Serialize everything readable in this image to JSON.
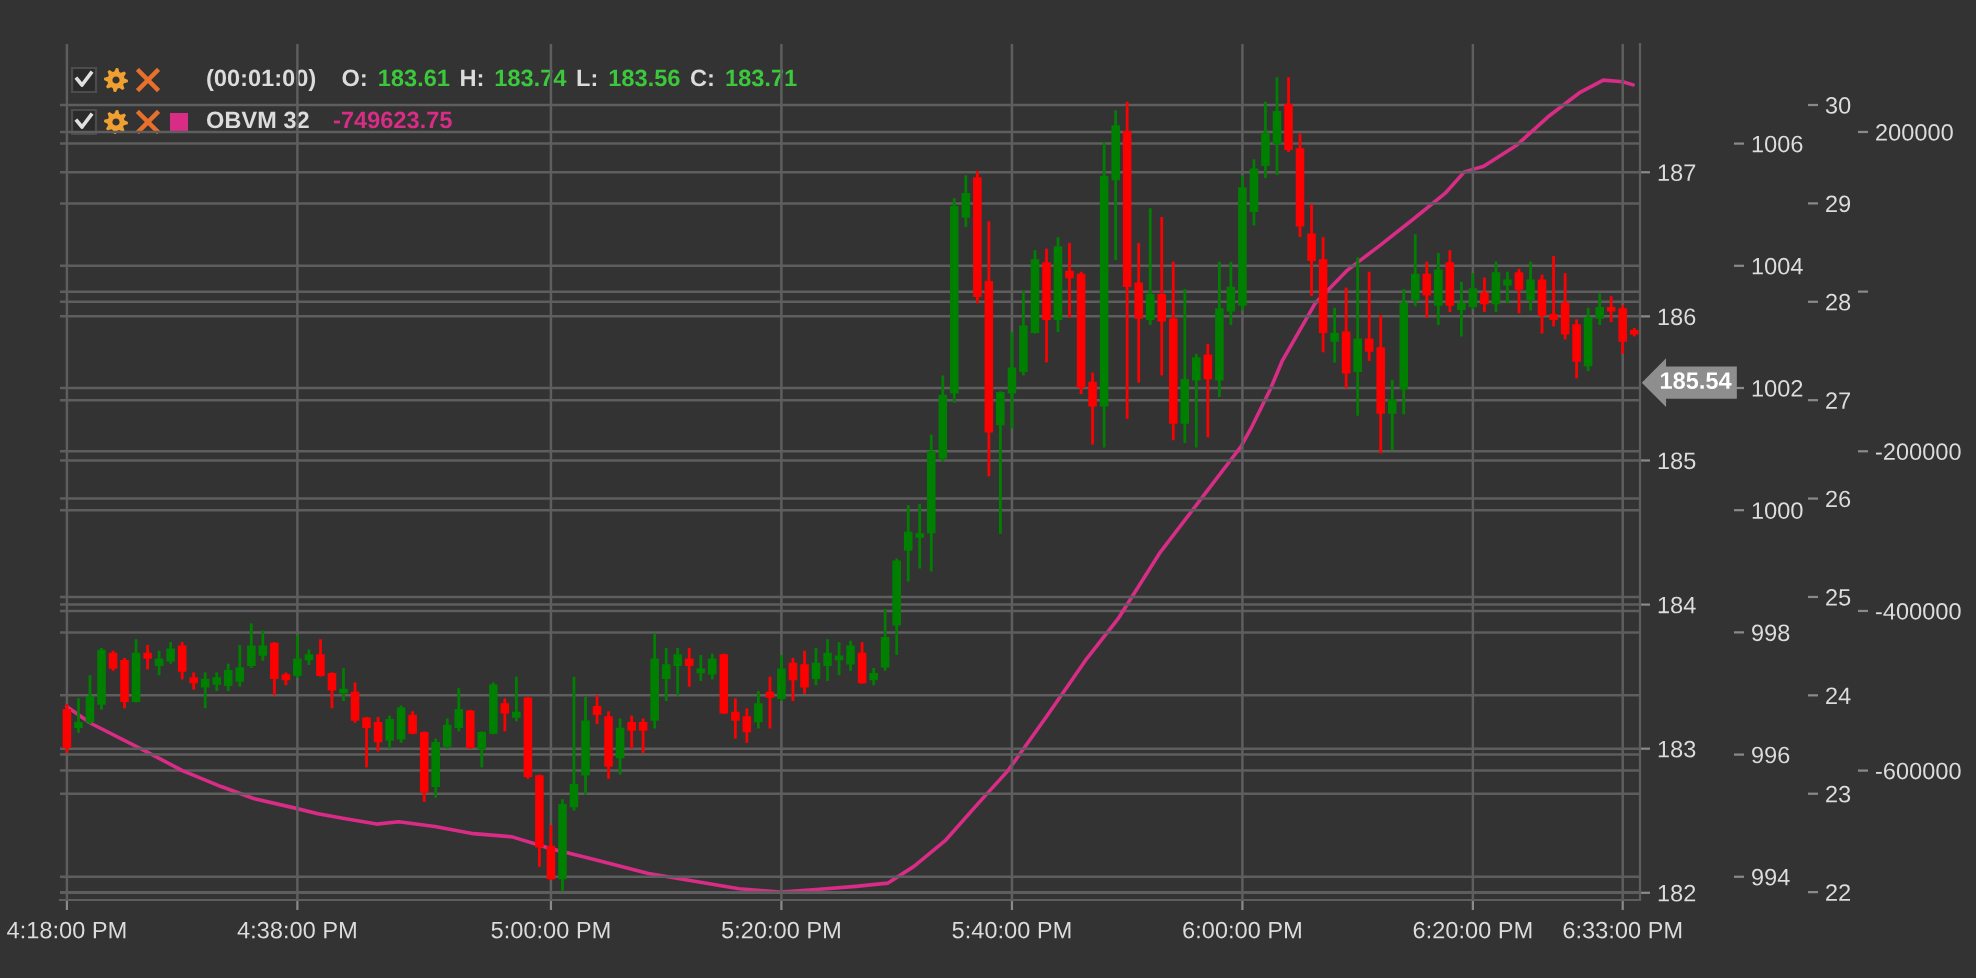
{
  "chart_data": [
    {
      "type": "candlestick",
      "x": [
        16.3,
        16.3167,
        16.3333,
        16.35,
        16.3667,
        16.3833,
        16.4,
        16.4167,
        16.4333,
        16.45,
        16.4667,
        16.4833,
        16.5,
        16.5167,
        16.5333,
        16.55,
        16.5667,
        16.5833,
        16.6,
        16.6167,
        16.6333,
        16.65,
        16.6667,
        16.6833,
        16.7,
        16.7167,
        16.7333,
        16.75,
        16.7667,
        16.7833,
        16.8,
        16.8167,
        16.8333,
        16.85,
        16.8667,
        16.8833,
        16.9,
        16.9167,
        16.9333,
        16.95,
        16.9667,
        16.9833,
        17,
        17.0167,
        17.0333,
        17.05,
        17.0667,
        17.0833,
        17.1,
        17.1167,
        17.1333,
        17.15,
        17.1667,
        17.1833,
        17.2,
        17.2167,
        17.2333,
        17.25,
        17.2667,
        17.2833,
        17.3,
        17.3167,
        17.3333,
        17.35,
        17.3667,
        17.3833,
        17.4,
        17.4167,
        17.4333,
        17.45,
        17.4667,
        17.4833,
        17.5,
        17.5167,
        17.5333,
        17.55,
        17.5667,
        17.5833,
        17.6,
        17.6167,
        17.6333,
        17.65,
        17.6667,
        17.6833,
        17.7,
        17.7167,
        17.7333,
        17.75,
        17.7667,
        17.7833,
        17.8,
        17.8167,
        17.8333,
        17.85,
        17.8667,
        17.8833,
        17.9,
        17.9167,
        17.9333,
        17.95,
        17.9667,
        17.9833,
        18,
        18.0167,
        18.0333,
        18.05,
        18.0667,
        18.0833,
        18.1,
        18.1167,
        18.1333,
        18.15,
        18.1667,
        18.1833,
        18.2,
        18.2167,
        18.2333,
        18.25,
        18.2667,
        18.2833,
        18.3,
        18.3167,
        18.3333,
        18.35,
        18.3667,
        18.3833,
        18.4,
        18.4167,
        18.4333,
        18.45,
        18.4667,
        18.4833,
        18.5,
        18.5167,
        18.5333,
        18.55,
        18.5667
      ],
      "xlim": [
        16.29,
        18.575
      ],
      "xticks": [
        {
          "value": 16.3,
          "label": "4:18:00 PM"
        },
        {
          "value": 16.6333,
          "label": "4:38:00 PM"
        },
        {
          "value": 17,
          "label": "5:00:00 PM"
        },
        {
          "value": 17.3333,
          "label": "5:20:00 PM"
        },
        {
          "value": 17.6667,
          "label": "5:40:00 PM"
        },
        {
          "value": 18,
          "label": "6:00:00 PM"
        },
        {
          "value": 18.3333,
          "label": "6:20:00 PM"
        },
        {
          "value": 18.55,
          "label": "6:33:00 PM"
        }
      ],
      "ylim": [
        181.95,
        187.89
      ],
      "yticks": [
        182,
        183,
        184,
        185,
        186,
        187
      ],
      "y2lim": [
        993.62,
        1007.63
      ],
      "y2ticks": [
        994,
        996,
        998,
        1000,
        1002,
        1004,
        1006
      ],
      "y3lim": [
        21.92,
        30.62
      ],
      "y3ticks": [
        22,
        23,
        24,
        25,
        26,
        27,
        28,
        29,
        30
      ],
      "grid": true,
      "legend": "top left",
      "series": [
        {
          "name": "(00:01:00)",
          "ohlc": [
            [
              183.27,
              183.3,
              182.98,
              183.01
            ],
            [
              183.15,
              183.34,
              183.12,
              183.18
            ],
            [
              183.19,
              183.5,
              183.18,
              183.36
            ],
            [
              183.31,
              183.69,
              183.28,
              183.68
            ],
            [
              183.66,
              183.67,
              183.55,
              183.56
            ],
            [
              183.61,
              183.62,
              183.29,
              183.33
            ],
            [
              183.33,
              183.75,
              183.33,
              183.66
            ],
            [
              183.66,
              183.71,
              183.56,
              183.63
            ],
            [
              183.58,
              183.67,
              183.52,
              183.62
            ],
            [
              183.61,
              183.73,
              183.6,
              183.69
            ],
            [
              183.71,
              183.73,
              183.49,
              183.54
            ],
            [
              183.49,
              183.52,
              183.42,
              183.46
            ],
            [
              183.43,
              183.52,
              183.29,
              183.48
            ],
            [
              183.45,
              183.52,
              183.41,
              183.49
            ],
            [
              183.44,
              183.58,
              183.41,
              183.54
            ],
            [
              183.47,
              183.71,
              183.44,
              183.56
            ],
            [
              183.58,
              183.86,
              183.57,
              183.71
            ],
            [
              183.65,
              183.81,
              183.62,
              183.71
            ],
            [
              183.73,
              183.73,
              183.38,
              183.49
            ],
            [
              183.51,
              183.52,
              183.45,
              183.48
            ],
            [
              183.51,
              183.78,
              183.5,
              183.62
            ],
            [
              183.62,
              183.68,
              183.59,
              183.65
            ],
            [
              183.65,
              183.75,
              183.51,
              183.51
            ],
            [
              183.52,
              183.52,
              183.29,
              183.41
            ],
            [
              183.39,
              183.55,
              183.34,
              183.41
            ],
            [
              183.39,
              183.45,
              183.19,
              183.2
            ],
            [
              183.21,
              183.21,
              182.88,
              183.15
            ],
            [
              183.18,
              183.21,
              182.99,
              183.05
            ],
            [
              183.06,
              183.22,
              183.01,
              183.2
            ],
            [
              183.07,
              183.29,
              183.05,
              183.28
            ],
            [
              183.23,
              183.25,
              183.11,
              183.11
            ],
            [
              183.11,
              183.11,
              182.64,
              182.7
            ],
            [
              182.74,
              183.06,
              182.67,
              183.04
            ],
            [
              183.02,
              183.2,
              183.01,
              183.16
            ],
            [
              183.15,
              183.41,
              183.13,
              183.27
            ],
            [
              183.26,
              183.26,
              183.01,
              183.01
            ],
            [
              183.0,
              183.11,
              182.88,
              183.11
            ],
            [
              183.11,
              183.45,
              183.11,
              183.44
            ],
            [
              183.31,
              183.34,
              183.13,
              183.25
            ],
            [
              183.22,
              183.49,
              183.2,
              183.25
            ],
            [
              183.35,
              183.35,
              182.8,
              182.81
            ],
            [
              182.81,
              182.81,
              182.19,
              182.32
            ],
            [
              182.32,
              182.46,
              182.1,
              182.1
            ],
            [
              182.1,
              182.64,
              182.02,
              182.61
            ],
            [
              182.6,
              183.49,
              182.58,
              182.75
            ],
            [
              182.82,
              183.35,
              182.69,
              183.19
            ],
            [
              183.29,
              183.36,
              183.18,
              183.24
            ],
            [
              183.22,
              183.25,
              182.8,
              182.88
            ],
            [
              182.94,
              183.2,
              182.83,
              183.14
            ],
            [
              183.18,
              183.22,
              183.01,
              183.13
            ],
            [
              183.18,
              183.2,
              182.98,
              183.13
            ],
            [
              183.2,
              183.79,
              183.15,
              183.62
            ],
            [
              183.49,
              183.69,
              183.34,
              183.58
            ],
            [
              183.58,
              183.69,
              183.38,
              183.65
            ],
            [
              183.62,
              183.69,
              183.44,
              183.58
            ],
            [
              183.53,
              183.64,
              183.48,
              183.55
            ],
            [
              183.52,
              183.65,
              183.49,
              183.62
            ],
            [
              183.65,
              183.65,
              183.25,
              183.25
            ],
            [
              183.25,
              183.34,
              183.08,
              183.2
            ],
            [
              183.22,
              183.27,
              183.05,
              183.12
            ],
            [
              183.19,
              183.39,
              183.15,
              183.31
            ],
            [
              183.39,
              183.49,
              183.15,
              183.36
            ],
            [
              183.35,
              183.64,
              183.34,
              183.55
            ],
            [
              183.59,
              183.62,
              183.34,
              183.48
            ],
            [
              183.58,
              183.67,
              183.39,
              183.43
            ],
            [
              183.49,
              183.69,
              183.45,
              183.59
            ],
            [
              183.58,
              183.75,
              183.48,
              183.66
            ],
            [
              183.62,
              183.73,
              183.52,
              183.64
            ],
            [
              183.59,
              183.74,
              183.55,
              183.71
            ],
            [
              183.66,
              183.73,
              183.46,
              183.46
            ],
            [
              183.48,
              183.55,
              183.45,
              183.52
            ],
            [
              183.57,
              183.96,
              183.55,
              183.77
            ],
            [
              183.86,
              184.31,
              183.66,
              184.3
            ],
            [
              184.38,
              184.68,
              184.17,
              184.5
            ],
            [
              184.47,
              184.69,
              184.26,
              184.49
            ],
            [
              184.5,
              185.17,
              184.24,
              185.06
            ],
            [
              185.02,
              185.58,
              185.0,
              185.45
            ],
            [
              185.47,
              186.81,
              185.41,
              186.76
            ],
            [
              186.69,
              186.97,
              186.63,
              186.85
            ],
            [
              186.96,
              187.0,
              186.1,
              186.14
            ],
            [
              186.24,
              186.65,
              184.9,
              185.2
            ],
            [
              185.25,
              185.47,
              184.5,
              185.47
            ],
            [
              185.47,
              185.88,
              185.23,
              185.64
            ],
            [
              185.62,
              186.17,
              185.6,
              185.93
            ],
            [
              185.89,
              186.45,
              185.89,
              186.39
            ],
            [
              186.37,
              186.46,
              185.69,
              185.98
            ],
            [
              185.98,
              186.54,
              185.9,
              186.48
            ],
            [
              186.31,
              186.5,
              186.0,
              186.27
            ],
            [
              186.29,
              186.3,
              185.47,
              185.51
            ],
            [
              185.54,
              185.6,
              185.12,
              185.38
            ],
            [
              185.38,
              187.2,
              185.1,
              186.97
            ],
            [
              186.95,
              187.42,
              186.4,
              187.32
            ],
            [
              187.28,
              187.48,
              185.3,
              186.21
            ],
            [
              186.23,
              186.5,
              185.55,
              185.99
            ],
            [
              185.98,
              186.74,
              185.95,
              186.15
            ],
            [
              186.15,
              186.68,
              185.6,
              185.97
            ],
            [
              185.98,
              186.37,
              185.15,
              185.26
            ],
            [
              185.26,
              186.18,
              185.13,
              185.56
            ],
            [
              185.56,
              185.73,
              185.1,
              185.71
            ],
            [
              185.73,
              185.8,
              185.17,
              185.57
            ],
            [
              185.56,
              186.37,
              185.45,
              186.05
            ],
            [
              186.04,
              186.37,
              185.95,
              186.2
            ],
            [
              186.08,
              186.97,
              186.05,
              186.89
            ],
            [
              186.73,
              187.08,
              186.64,
              187.02
            ],
            [
              187.05,
              187.48,
              186.97,
              187.27
            ],
            [
              187.2,
              187.65,
              186.99,
              187.42
            ],
            [
              187.47,
              187.65,
              187.15,
              187.16
            ],
            [
              187.16,
              187.26,
              186.56,
              186.63
            ],
            [
              186.57,
              186.77,
              186.15,
              186.39
            ],
            [
              186.39,
              186.54,
              185.76,
              185.89
            ],
            [
              185.83,
              186.05,
              185.69,
              185.88
            ],
            [
              185.89,
              186.19,
              185.51,
              185.61
            ],
            [
              185.62,
              186.4,
              185.32,
              185.84
            ],
            [
              185.84,
              186.3,
              185.7,
              185.76
            ],
            [
              185.78,
              186.0,
              185.06,
              185.33
            ],
            [
              185.33,
              185.55,
              185.08,
              185.42
            ],
            [
              185.5,
              186.18,
              185.33,
              186.09
            ],
            [
              186.12,
              186.56,
              186.08,
              186.29
            ],
            [
              186.29,
              186.37,
              186.0,
              186.15
            ],
            [
              186.08,
              186.43,
              185.95,
              186.32
            ],
            [
              186.37,
              186.45,
              186.04,
              186.08
            ],
            [
              186.05,
              186.23,
              185.87,
              186.09
            ],
            [
              186.07,
              186.29,
              186.06,
              186.19
            ],
            [
              186.16,
              186.26,
              186.04,
              186.09
            ],
            [
              186.09,
              186.37,
              186.04,
              186.3
            ],
            [
              186.22,
              186.3,
              186.1,
              186.25
            ],
            [
              186.3,
              186.32,
              186.03,
              186.19
            ],
            [
              186.12,
              186.37,
              186.05,
              186.25
            ],
            [
              186.25,
              186.28,
              185.89,
              186.01
            ],
            [
              186.01,
              186.41,
              185.94,
              185.98
            ],
            [
              186.09,
              186.29,
              185.85,
              185.88
            ],
            [
              185.94,
              185.97,
              185.58,
              185.69
            ],
            [
              185.66,
              186.05,
              185.63,
              185.99
            ],
            [
              185.99,
              186.15,
              185.95,
              186.06
            ],
            [
              186.06,
              186.13,
              185.97,
              186.04
            ],
            [
              186.05,
              186.07,
              185.75,
              185.83
            ],
            [
              185.9,
              185.91,
              185.87,
              185.88
            ]
          ],
          "colors": [
            "#ff0000",
            "#008000",
            "#008000",
            "#008000",
            "#ff0000",
            "#ff0000",
            "#008000",
            "#ff0000",
            "#008000",
            "#008000",
            "#ff0000",
            "#ff0000",
            "#008000",
            "#008000",
            "#008000",
            "#008000",
            "#008000",
            "#008000",
            "#ff0000",
            "#ff0000",
            "#008000",
            "#008000",
            "#ff0000",
            "#ff0000",
            "#008000",
            "#ff0000",
            "#ff0000",
            "#ff0000",
            "#008000",
            "#008000",
            "#ff0000",
            "#ff0000",
            "#008000",
            "#008000",
            "#008000",
            "#ff0000",
            "#008000",
            "#008000",
            "#ff0000",
            "#008000",
            "#ff0000",
            "#ff0000",
            "#ff0000",
            "#008000",
            "#008000",
            "#008000",
            "#ff0000",
            "#ff0000",
            "#008000",
            "#ff0000",
            "#ff0000",
            "#008000",
            "#008000",
            "#008000",
            "#ff0000",
            "#008000",
            "#008000",
            "#ff0000",
            "#ff0000",
            "#ff0000",
            "#008000",
            "#ff0000",
            "#008000",
            "#ff0000",
            "#ff0000",
            "#008000",
            "#008000",
            "#008000",
            "#008000",
            "#ff0000",
            "#008000",
            "#008000",
            "#008000",
            "#008000",
            "#008000",
            "#008000",
            "#008000",
            "#008000",
            "#008000",
            "#ff0000",
            "#ff0000",
            "#008000",
            "#008000",
            "#008000",
            "#008000",
            "#ff0000",
            "#008000",
            "#ff0000",
            "#ff0000",
            "#ff0000",
            "#008000",
            "#008000",
            "#ff0000",
            "#ff0000",
            "#008000",
            "#ff0000",
            "#ff0000",
            "#008000",
            "#008000",
            "#ff0000",
            "#008000",
            "#008000",
            "#008000",
            "#008000",
            "#008000",
            "#008000",
            "#ff0000",
            "#ff0000",
            "#ff0000",
            "#ff0000",
            "#008000",
            "#ff0000",
            "#008000",
            "#ff0000",
            "#ff0000",
            "#008000",
            "#008000",
            "#008000",
            "#ff0000",
            "#008000",
            "#ff0000",
            "#008000",
            "#008000",
            "#ff0000",
            "#008000",
            "#008000",
            "#ff0000",
            "#008000",
            "#ff0000",
            "#ff0000",
            "#ff0000",
            "#ff0000",
            "#008000",
            "#008000",
            "#ff0000",
            "#ff0000",
            "#ff0000"
          ]
        }
      ],
      "annotations": [
        "O: 183.61 H: 183.74 L: 183.56 C: 183.71",
        "185.54"
      ]
    },
    {
      "type": "line",
      "xlim": [
        16.29,
        18.575
      ],
      "ylim": [
        -762100,
        310200
      ],
      "yticks": [
        -600000,
        -400000,
        -200000,
        {
          "value": 0,
          "label": null
        },
        200000
      ],
      "tick_labels": "y",
      "grid": "y",
      "legend": "top left",
      "series": [
        {
          "name": "OBVM 32",
          "color": "#d82c86",
          "x": [
            16.3,
            16.335,
            16.41,
            16.467,
            16.523,
            16.57,
            16.63,
            16.663,
            16.701,
            16.748,
            16.78,
            16.832,
            16.888,
            16.944,
            17.0,
            17.057,
            17.141,
            17.197,
            17.272,
            17.331,
            17.384,
            17.441,
            17.487,
            17.525,
            17.571,
            17.618,
            17.661,
            17.717,
            17.773,
            17.82,
            17.88,
            17.946,
            17.998,
            18.012,
            18.04,
            18.058,
            18.105,
            18.152,
            18.199,
            18.246,
            18.293,
            18.321,
            18.349,
            18.396,
            18.442,
            18.489,
            18.522,
            18.55,
            18.565
          ],
          "values": [
            -520000,
            -541000,
            -574000,
            -600000,
            -620000,
            -635000,
            -647000,
            -654000,
            -660000,
            -667000,
            -664000,
            -670000,
            -679000,
            -683000,
            -698000,
            -710000,
            -729000,
            -737000,
            -748000,
            -752000,
            -749000,
            -745000,
            -741000,
            -720000,
            -687000,
            -641000,
            -600000,
            -532000,
            -462000,
            -410000,
            -328000,
            -253000,
            -194000,
            -172000,
            -123000,
            -86000,
            -15000,
            27000,
            58000,
            90000,
            123000,
            150000,
            157000,
            183000,
            219000,
            250000,
            265000,
            263000,
            259000
          ]
        }
      ],
      "annotations": [
        "-749623.75"
      ]
    }
  ]
}
